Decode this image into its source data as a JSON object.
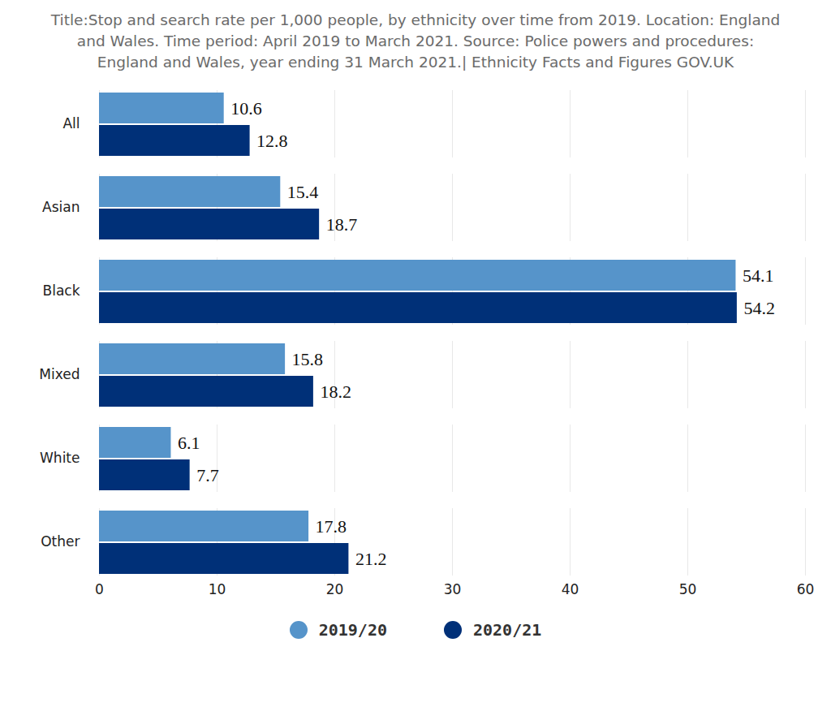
{
  "chart_data": {
    "type": "bar",
    "title": "Title:Stop and search rate per 1,000 people, by ethnicity over time from 2019. Location: England and Wales. Time period: April 2019 to March 2021. Source: Police powers and procedures: England and Wales, year ending 31 March 2021.| Ethnicity Facts and Figures GOV.UK",
    "categories": [
      "All",
      "Asian",
      "Black",
      "Mixed",
      "White",
      "Other"
    ],
    "series": [
      {
        "name": "2019/20",
        "color": "#5694ca",
        "values": [
          10.6,
          15.4,
          54.1,
          15.8,
          6.1,
          17.8
        ]
      },
      {
        "name": "2020/21",
        "color": "#003078",
        "values": [
          12.8,
          18.7,
          54.2,
          18.2,
          7.7,
          21.2
        ]
      }
    ],
    "orientation": "horizontal",
    "xlim": [
      0,
      60
    ],
    "xticks": [
      0,
      10,
      20,
      30,
      40,
      50,
      60
    ],
    "grid": true,
    "legend": "bottom",
    "data_labels": true
  }
}
